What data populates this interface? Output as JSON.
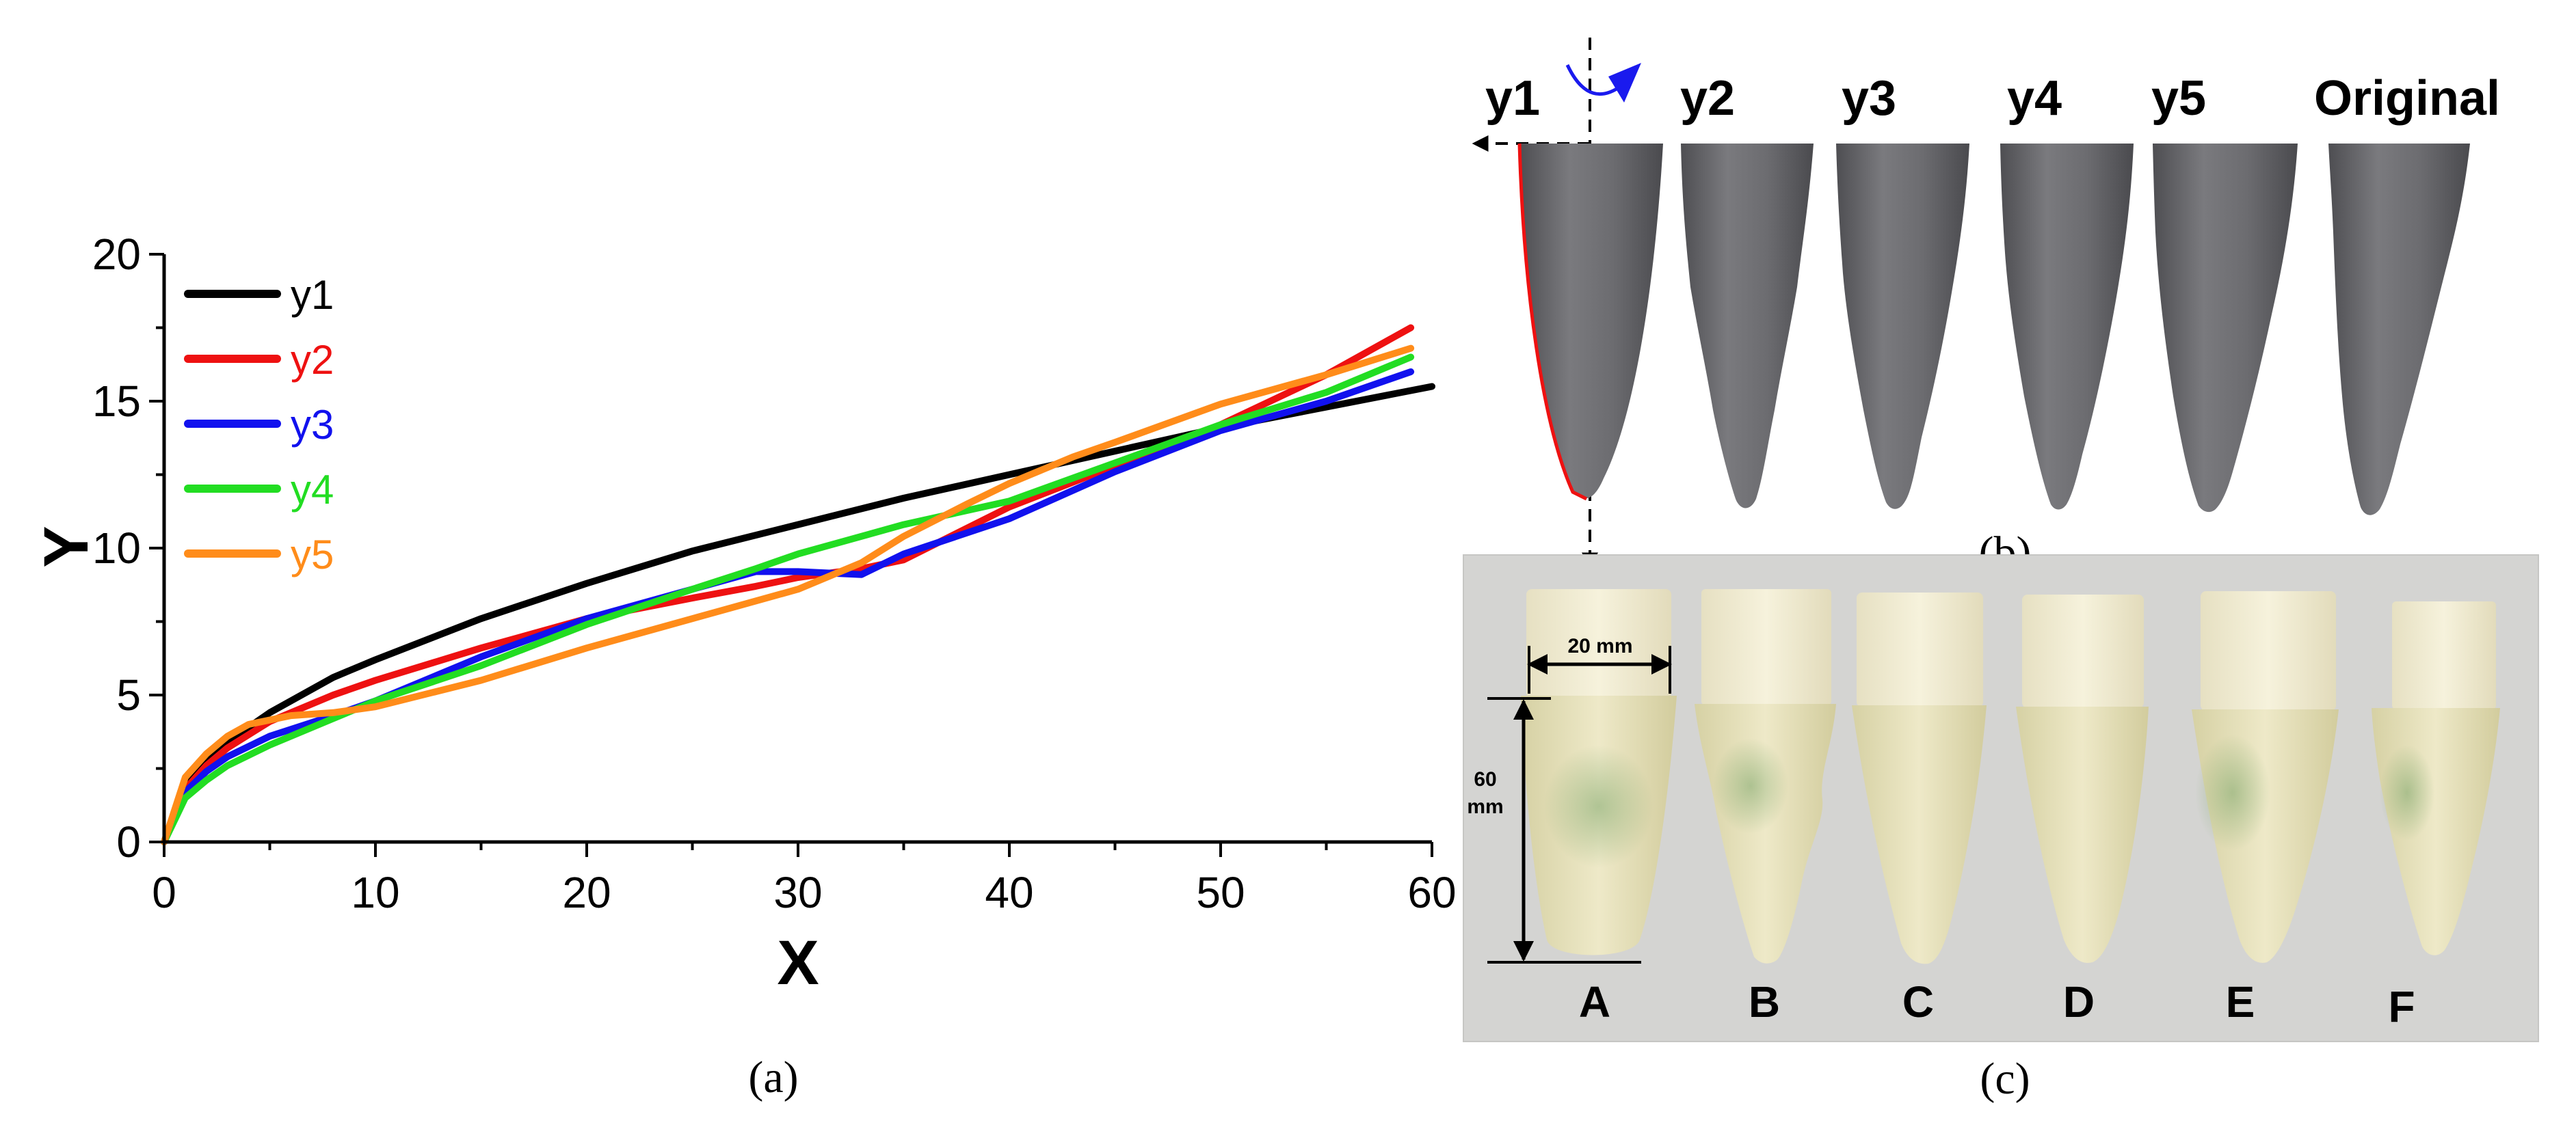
{
  "chart_data": {
    "type": "line",
    "title": "",
    "xlabel": "X",
    "ylabel": "Y",
    "xlim": [
      0,
      60
    ],
    "ylim": [
      0,
      20
    ],
    "xticks": [
      0,
      10,
      20,
      30,
      40,
      50,
      60
    ],
    "yticks": [
      0,
      5,
      10,
      15,
      20
    ],
    "grid": false,
    "legend_position": "top-left",
    "series": [
      {
        "name": "y1",
        "color": "#000000",
        "x": [
          0,
          1,
          2,
          3,
          5,
          8,
          10,
          15,
          20,
          25,
          30,
          35,
          40,
          45,
          50,
          55,
          60
        ],
        "y": [
          0,
          2.0,
          2.8,
          3.4,
          4.4,
          5.6,
          6.2,
          7.6,
          8.8,
          9.9,
          10.8,
          11.7,
          12.5,
          13.3,
          14.1,
          14.8,
          15.5
        ]
      },
      {
        "name": "y2",
        "color": "#ee1111",
        "x": [
          0,
          1,
          2,
          3,
          5,
          8,
          10,
          15,
          20,
          25,
          28,
          30,
          33,
          35,
          40,
          45,
          50,
          55,
          59
        ],
        "y": [
          0,
          1.8,
          2.6,
          3.2,
          4.1,
          5.0,
          5.5,
          6.6,
          7.6,
          8.3,
          8.7,
          9.0,
          9.3,
          9.6,
          11.4,
          12.8,
          14.2,
          15.9,
          17.5
        ]
      },
      {
        "name": "y3",
        "color": "#1111ee",
        "x": [
          0,
          1,
          2,
          3,
          5,
          8,
          10,
          15,
          20,
          25,
          28,
          30,
          33,
          35,
          40,
          45,
          50,
          55,
          59
        ],
        "y": [
          0,
          1.7,
          2.4,
          2.9,
          3.6,
          4.3,
          4.8,
          6.3,
          7.6,
          8.6,
          9.2,
          9.2,
          9.1,
          9.8,
          11.0,
          12.6,
          14.0,
          15.0,
          16.0
        ]
      },
      {
        "name": "y4",
        "color": "#22dd22",
        "x": [
          0,
          1,
          2,
          3,
          5,
          8,
          10,
          15,
          20,
          25,
          28,
          30,
          33,
          35,
          40,
          45,
          50,
          55,
          59
        ],
        "y": [
          0,
          1.5,
          2.1,
          2.6,
          3.3,
          4.2,
          4.8,
          6.0,
          7.4,
          8.6,
          9.3,
          9.8,
          10.4,
          10.8,
          11.6,
          12.9,
          14.2,
          15.3,
          16.5
        ]
      },
      {
        "name": "y5",
        "color": "#ff8c1a",
        "x": [
          0,
          1,
          2,
          3,
          4,
          6,
          8,
          10,
          15,
          20,
          25,
          30,
          33,
          35,
          38,
          40,
          43,
          45,
          50,
          55,
          59
        ],
        "y": [
          0,
          2.2,
          3.0,
          3.6,
          4.0,
          4.3,
          4.4,
          4.6,
          5.5,
          6.6,
          7.6,
          8.6,
          9.5,
          10.4,
          11.5,
          12.2,
          13.1,
          13.6,
          14.9,
          15.9,
          16.8
        ]
      }
    ]
  },
  "panel_a": {
    "caption": "(a)",
    "legend": [
      {
        "label": "y1",
        "color": "#000000"
      },
      {
        "label": "y2",
        "color": "#ee1111"
      },
      {
        "label": "y3",
        "color": "#1111ee"
      },
      {
        "label": "y4",
        "color": "#22dd22"
      },
      {
        "label": "y5",
        "color": "#ff8c1a"
      }
    ]
  },
  "panel_b": {
    "caption": "(b)",
    "labels": [
      "y1",
      "y2",
      "y3",
      "y4",
      "y5",
      "Original"
    ],
    "shape_color": "#6e6e72",
    "profile_color": "#ee1111",
    "rotation_arrow_color": "#1a1aee"
  },
  "panel_c": {
    "caption": "(c)",
    "labels": [
      "A",
      "B",
      "C",
      "D",
      "E",
      "F"
    ],
    "width_dim": "20 mm",
    "height_dim_line1": "60",
    "height_dim_line2": "mm",
    "background_color": "#d5d5d3",
    "block_color": "#f1ecd2",
    "cone_color": "#e8e3bf"
  }
}
